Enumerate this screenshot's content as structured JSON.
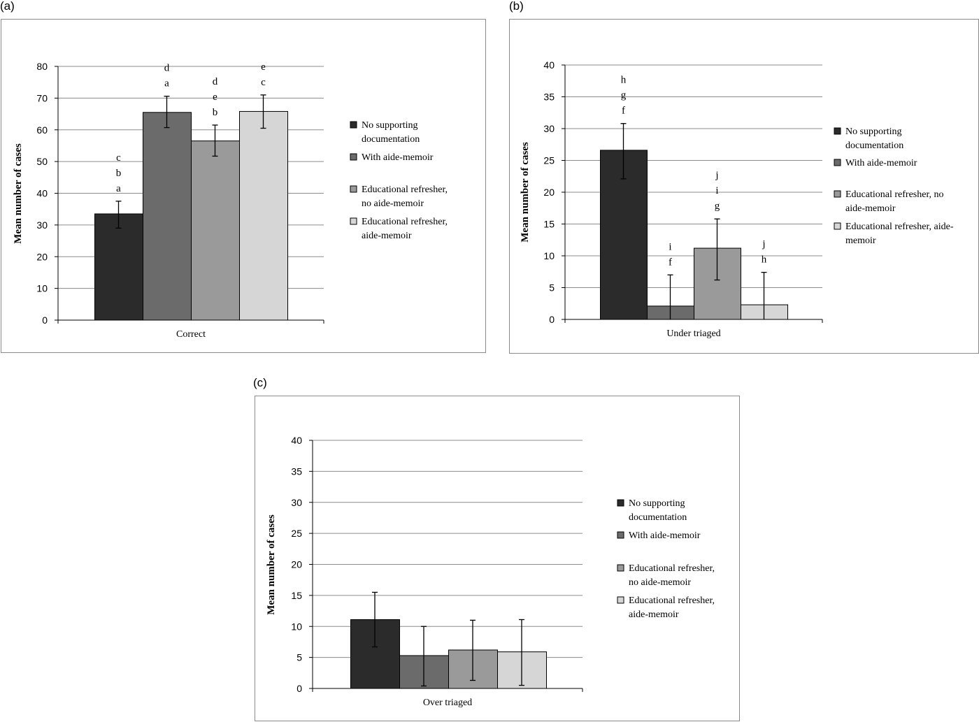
{
  "chart_data": [
    {
      "panel_label": "(a)",
      "type": "bar",
      "xlabel": "Correct",
      "ylabel": "Mean number of cases",
      "ylim": [
        0,
        80
      ],
      "yticks": [
        0,
        10,
        20,
        30,
        40,
        50,
        60,
        70,
        80
      ],
      "grid": true,
      "legend_position": "right",
      "series": [
        {
          "name": "No supporting documentation",
          "legend_lines": [
            "No supporting",
            "documentation"
          ],
          "color": "#2b2b2b",
          "value": 33.5,
          "err_low": 29.0,
          "err_high": 37.5,
          "letters": [
            "a",
            "b",
            "c"
          ]
        },
        {
          "name": "With aide-memoir",
          "legend_lines": [
            "With aide-memoir"
          ],
          "color": "#6b6b6b",
          "value": 65.5,
          "err_low": 60.7,
          "err_high": 70.6,
          "letters": [
            "a",
            "d"
          ]
        },
        {
          "name": "Educational refresher, no aide-memoir",
          "legend_lines": [
            "Educational refresher,",
            "no aide-memoir"
          ],
          "color": "#9a9a9a",
          "value": 56.5,
          "err_low": 51.7,
          "err_high": 61.5,
          "letters": [
            "b",
            "e",
            "d"
          ]
        },
        {
          "name": "Educational refresher, aide-memoir",
          "legend_lines": [
            "Educational refresher,",
            "aide-memoir"
          ],
          "color": "#d6d6d6",
          "value": 65.8,
          "err_low": 60.5,
          "err_high": 71.0,
          "letters": [
            "c",
            "e"
          ]
        }
      ]
    },
    {
      "panel_label": "(b)",
      "type": "bar",
      "xlabel": "Under triaged",
      "ylabel": "Mean number of cases",
      "ylim": [
        0,
        40
      ],
      "yticks": [
        0,
        5,
        10,
        15,
        20,
        25,
        30,
        35,
        40
      ],
      "grid": true,
      "legend_position": "right",
      "series": [
        {
          "name": "No supporting documentation",
          "legend_lines": [
            "No supporting",
            "documentation"
          ],
          "color": "#2b2b2b",
          "value": 26.6,
          "err_low": 22.1,
          "err_high": 30.8,
          "letters": [
            "f",
            "g",
            "h"
          ]
        },
        {
          "name": "With aide-memoir",
          "legend_lines": [
            "With aide-memoir"
          ],
          "color": "#6b6b6b",
          "value": 2.1,
          "err_low": 0,
          "err_high": 7.0,
          "letters": [
            "f",
            "i"
          ]
        },
        {
          "name": "Educational refresher, no aide-memoir",
          "legend_lines": [
            "Educational refresher, no",
            "aide-memoir"
          ],
          "color": "#9a9a9a",
          "value": 11.2,
          "err_low": 6.2,
          "err_high": 15.8,
          "letters": [
            "g",
            "i",
            "j"
          ]
        },
        {
          "name": "Educational refresher, aide-memoir",
          "legend_lines": [
            "Educational refresher, aide-",
            "memoir"
          ],
          "color": "#d6d6d6",
          "value": 2.3,
          "err_low": 0,
          "err_high": 7.4,
          "letters": [
            "h",
            "j"
          ]
        }
      ]
    },
    {
      "panel_label": "(c)",
      "type": "bar",
      "xlabel": "Over triaged",
      "ylabel": "Mean number of cases",
      "ylim": [
        0,
        40
      ],
      "yticks": [
        0,
        5,
        10,
        15,
        20,
        25,
        30,
        35,
        40
      ],
      "grid": true,
      "legend_position": "right",
      "series": [
        {
          "name": "No supporting documentation",
          "legend_lines": [
            "No supporting",
            "documentation"
          ],
          "color": "#2b2b2b",
          "value": 11.1,
          "err_low": 6.7,
          "err_high": 15.5,
          "letters": []
        },
        {
          "name": "With aide-memoir",
          "legend_lines": [
            "With aide-memoir"
          ],
          "color": "#6b6b6b",
          "value": 5.3,
          "err_low": 0.4,
          "err_high": 10.0,
          "letters": []
        },
        {
          "name": "Educational refresher, no aide-memoir",
          "legend_lines": [
            "Educational refresher,",
            "no aide-memoir"
          ],
          "color": "#9a9a9a",
          "value": 6.2,
          "err_low": 1.3,
          "err_high": 11.0,
          "letters": []
        },
        {
          "name": "Educational refresher, aide-memoir",
          "legend_lines": [
            "Educational refresher,",
            "aide-memoir"
          ],
          "color": "#d6d6d6",
          "value": 5.9,
          "err_low": 0.5,
          "err_high": 11.1,
          "letters": []
        }
      ]
    }
  ]
}
